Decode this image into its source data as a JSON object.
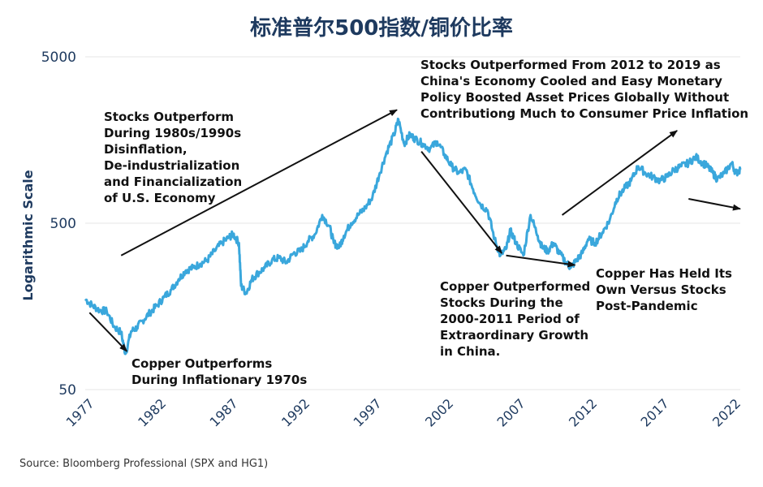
{
  "title": "标准普尔500指数/铜价比率",
  "source": "Source: Bloomberg Professional (SPX and HG1)",
  "colors": {
    "line": "#3aa7dc",
    "title": "#1e3a5f",
    "axis_text": "#1e3a5f",
    "grid": "#e6e6e6",
    "arrow": "#111111"
  },
  "chart_data": {
    "type": "line",
    "title": "标准普尔500指数/铜价比率",
    "ylabel": "Logarithmic Scale",
    "xlabel": "",
    "y_scale": "log",
    "ylim": [
      50,
      5000
    ],
    "xlim": [
      1977,
      2022.6
    ],
    "grid": "horizontal",
    "y_ticks": [
      {
        "value": 5000,
        "label": "5000"
      },
      {
        "value": 500,
        "label": "500"
      },
      {
        "value": 50,
        "label": "50"
      }
    ],
    "x_ticks": [
      "1977",
      "1982",
      "1987",
      "1992",
      "1997",
      "2002",
      "2007",
      "2012",
      "2017",
      "2022"
    ],
    "series": [
      {
        "name": "",
        "x": [
          1977.0,
          1977.5,
          1978.0,
          1978.5,
          1979.0,
          1979.5,
          1979.8,
          1980.2,
          1980.6,
          1981.0,
          1981.5,
          1982.0,
          1982.5,
          1983.0,
          1983.5,
          1984.0,
          1984.5,
          1985.0,
          1985.5,
          1986.0,
          1986.5,
          1987.0,
          1987.3,
          1987.7,
          1987.85,
          1988.2,
          1988.6,
          1989.0,
          1989.5,
          1990.0,
          1990.5,
          1991.0,
          1991.5,
          1992.0,
          1992.5,
          1993.0,
          1993.5,
          1994.0,
          1994.3,
          1994.7,
          1995.0,
          1995.5,
          1996.0,
          1996.5,
          1997.0,
          1997.5,
          1998.0,
          1998.5,
          1998.8,
          1999.2,
          1999.6,
          2000.0,
          2000.5,
          2001.0,
          2001.5,
          2002.0,
          2002.5,
          2003.0,
          2003.5,
          2004.0,
          2004.5,
          2005.0,
          2005.5,
          2005.9,
          2006.3,
          2006.6,
          2007.0,
          2007.5,
          2008.0,
          2008.5,
          2008.8,
          2009.2,
          2009.6,
          2010.0,
          2010.5,
          2010.8,
          2011.2,
          2011.6,
          2012.0,
          2012.5,
          2013.0,
          2013.5,
          2014.0,
          2014.5,
          2015.0,
          2015.5,
          2016.0,
          2016.5,
          2017.0,
          2017.5,
          2018.0,
          2018.5,
          2019.0,
          2019.5,
          2020.0,
          2020.3,
          2020.7,
          2021.0,
          2021.5,
          2022.0,
          2022.3,
          2022.6
        ],
        "values": [
          175,
          160,
          150,
          148,
          120,
          110,
          82,
          112,
          118,
          130,
          145,
          160,
          180,
          200,
          230,
          260,
          270,
          285,
          300,
          340,
          380,
          410,
          430,
          380,
          210,
          190,
          230,
          250,
          270,
          300,
          310,
          290,
          330,
          340,
          390,
          430,
          560,
          480,
          380,
          360,
          420,
          500,
          560,
          620,
          720,
          1000,
          1350,
          1700,
          2100,
          1500,
          1700,
          1600,
          1500,
          1400,
          1550,
          1300,
          1100,
          1000,
          1050,
          800,
          650,
          600,
          400,
          320,
          350,
          450,
          380,
          320,
          560,
          420,
          360,
          340,
          380,
          330,
          290,
          270,
          300,
          330,
          400,
          380,
          440,
          520,
          700,
          800,
          900,
          1100,
          1000,
          950,
          900,
          950,
          1050,
          1100,
          1150,
          1250,
          1150,
          1100,
          1000,
          920,
          1000,
          1150,
          1000,
          1050
        ]
      }
    ],
    "annotations": [
      {
        "text": "Copper Outperforms\nDuring Inflationary 1970s",
        "x": 1977.3,
        "y": 145,
        "x_end": 1979.9,
        "y_end": 85
      },
      {
        "text": "Stocks Outperform\nDuring 1980s/1990s\nDisinflation,\nDe-industrialization\nand Financialization\nof U.S. Economy",
        "x": 1979.5,
        "y": 320,
        "x_end": 1998.7,
        "y_end": 2400
      },
      {
        "text": "Copper Outperformed\nStocks During the\n2000-2011 Period of\nExtraordinary Growth\nin China.",
        "x": 2000.4,
        "y": 1350,
        "x_end": 2006.0,
        "y_end": 330
      },
      {
        "text": "Stocks Outperformed From 2012 to 2019 as\nChina's Economy Cooled and Easy Monetary\nPolicy Boosted Asset Prices Globally Without\nContributiong Much to Consumer Price Inflation",
        "x": 2010.2,
        "y": 560,
        "x_end": 2018.2,
        "y_end": 1800
      },
      {
        "text": "Copper Has Held Its\nOwn Versus Stocks\nPost-Pandemic",
        "x": 2006.3,
        "y": 320,
        "x_end": 2011.1,
        "y_end": 280
      },
      {
        "text": "",
        "x": 2019.0,
        "y": 700,
        "x_end": 2022.6,
        "y_end": 610
      }
    ]
  }
}
